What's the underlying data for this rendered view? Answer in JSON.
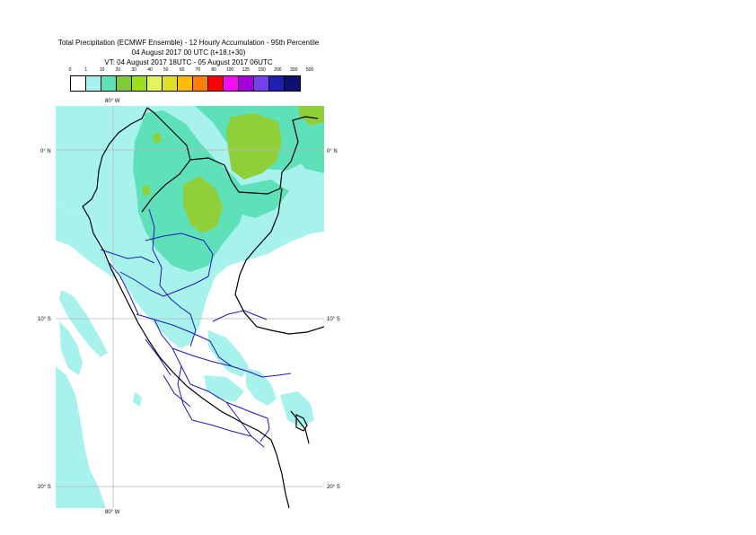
{
  "title": {
    "line1": "Total Precipitation (ECMWF Ensemble) - 12 Hourly Accumulation - 95th Percentile",
    "line2": "04 August 2017 00 UTC (t+18,t+30)",
    "line3": "VT: 04 August 2017 18UTC - 05 August 2017 06UTC"
  },
  "legend": {
    "thresholds": [
      "0",
      "1",
      "10",
      "20",
      "30",
      "40",
      "50",
      "60",
      "70",
      "80",
      "100",
      "125",
      "150",
      "200",
      "300",
      "500"
    ],
    "colors": [
      "#ffffff",
      "#a8f2ee",
      "#5ee0b8",
      "#7fc93a",
      "#9edf1c",
      "#e2f560",
      "#dede28",
      "#ffbc05",
      "#ff7f00",
      "#ff0000",
      "#f20df2",
      "#a500d9",
      "#7540f0",
      "#2020b0",
      "#101070"
    ]
  },
  "map": {
    "lon_labels": [
      "80° W",
      "80° W"
    ],
    "lat_labels_left": [
      "0° N",
      "10° S",
      "20° S"
    ],
    "lat_labels_right": [
      "0° N",
      "10° S",
      "20° S"
    ],
    "colors": {
      "ocean": "#ffffff",
      "light_precip": "#a8f2ee",
      "moderate_precip": "#5ee0b8",
      "heavy_precip": "#8fd03a",
      "coastline": "#000000",
      "region_borders": "#1a1ab4",
      "grid": "#b4b4b4"
    }
  }
}
